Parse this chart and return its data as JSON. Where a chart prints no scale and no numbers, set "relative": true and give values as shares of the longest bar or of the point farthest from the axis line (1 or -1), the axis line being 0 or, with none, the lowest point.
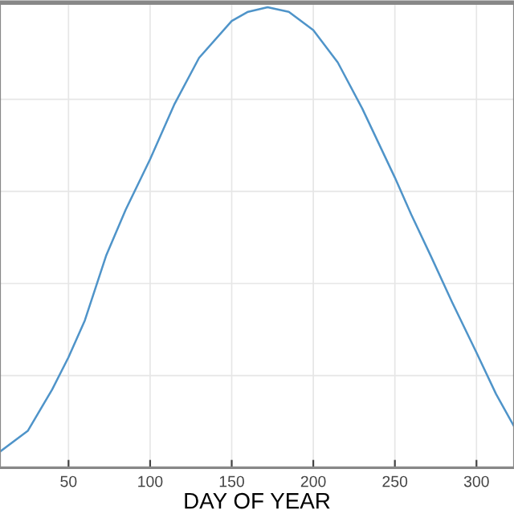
{
  "chart_data": {
    "type": "line",
    "xlabel": "DAY OF YEAR",
    "relative": true,
    "grid": true,
    "xlim": [
      8,
      323
    ],
    "xticks": [
      50,
      100,
      150,
      200,
      250,
      300
    ],
    "series": [
      {
        "color": "#4f94c9",
        "x": [
          8,
          25,
          40,
          50,
          60,
          73,
          85,
          100,
          115,
          130,
          150,
          160,
          172,
          185,
          200,
          215,
          230,
          250,
          260,
          272,
          285,
          300,
          312,
          323
        ],
        "values": [
          0.035,
          0.08,
          0.17,
          0.24,
          0.32,
          0.46,
          0.56,
          0.67,
          0.79,
          0.89,
          0.97,
          0.99,
          1.0,
          0.99,
          0.95,
          0.88,
          0.78,
          0.63,
          0.55,
          0.46,
          0.36,
          0.25,
          0.16,
          0.09
        ]
      }
    ]
  }
}
